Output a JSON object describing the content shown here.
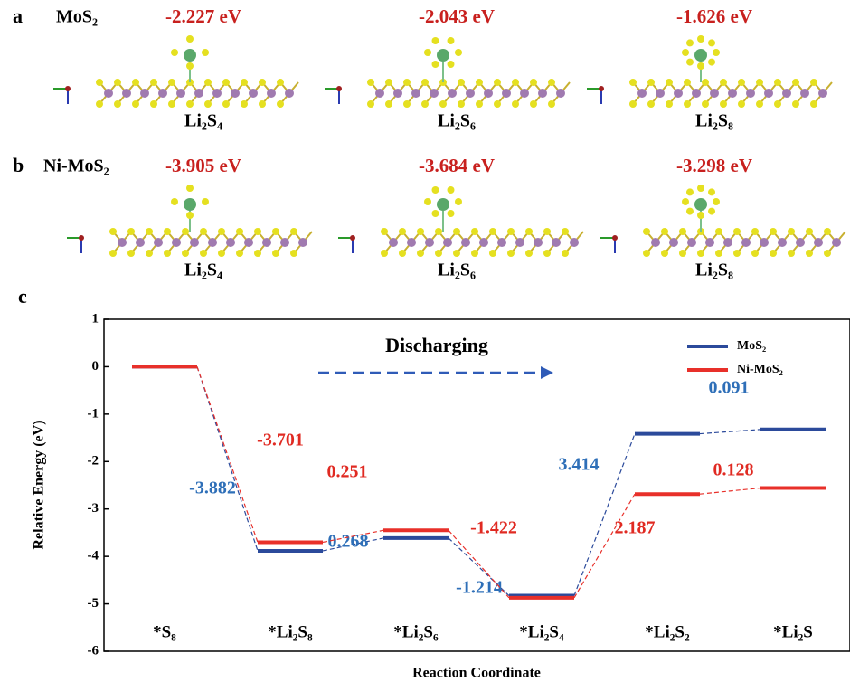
{
  "panels": [
    {
      "letter": "a",
      "substrate": "MoS₂",
      "structures": [
        {
          "energy": "-2.227 eV",
          "label": "Li₂S₄"
        },
        {
          "energy": "-2.043 eV",
          "label": "Li₂S₆"
        },
        {
          "energy": "-1.626 eV",
          "label": "Li₂S₈"
        }
      ]
    },
    {
      "letter": "b",
      "substrate": "Ni-MoS₂",
      "structures": [
        {
          "energy": "-3.905 eV",
          "label": "Li₂S₄"
        },
        {
          "energy": "-3.684 eV",
          "label": "Li₂S₆"
        },
        {
          "energy": "-3.298 eV",
          "label": "Li₂S₈"
        }
      ]
    }
  ],
  "chart_data": {
    "type": "level",
    "letter": "c",
    "xlabel": "Reaction Coordinate",
    "ylabel": "Relative Energy (eV)",
    "annotation": "Discharging",
    "categories": [
      "*S₈",
      "*Li₂S₈",
      "*Li₂S₆",
      "*Li₂S₄",
      "*Li₂S₂",
      "*Li₂S"
    ],
    "series": [
      {
        "name": "MoS₂",
        "color": "#2b4a9b",
        "label_color": "#2e6fb8",
        "values": [
          0,
          -3.882,
          0.268,
          -1.214,
          3.414,
          0.091
        ]
      },
      {
        "name": "Ni-MoS₂",
        "color": "#e8302a",
        "label_color": "#e02a22",
        "values": [
          0,
          -3.701,
          0.251,
          -1.422,
          2.187,
          0.128
        ]
      }
    ],
    "ylim": [
      -6,
      1
    ],
    "yticks": [
      1,
      0,
      -1,
      -2,
      -3,
      -4,
      -5,
      -6
    ],
    "legend": "upper right"
  }
}
